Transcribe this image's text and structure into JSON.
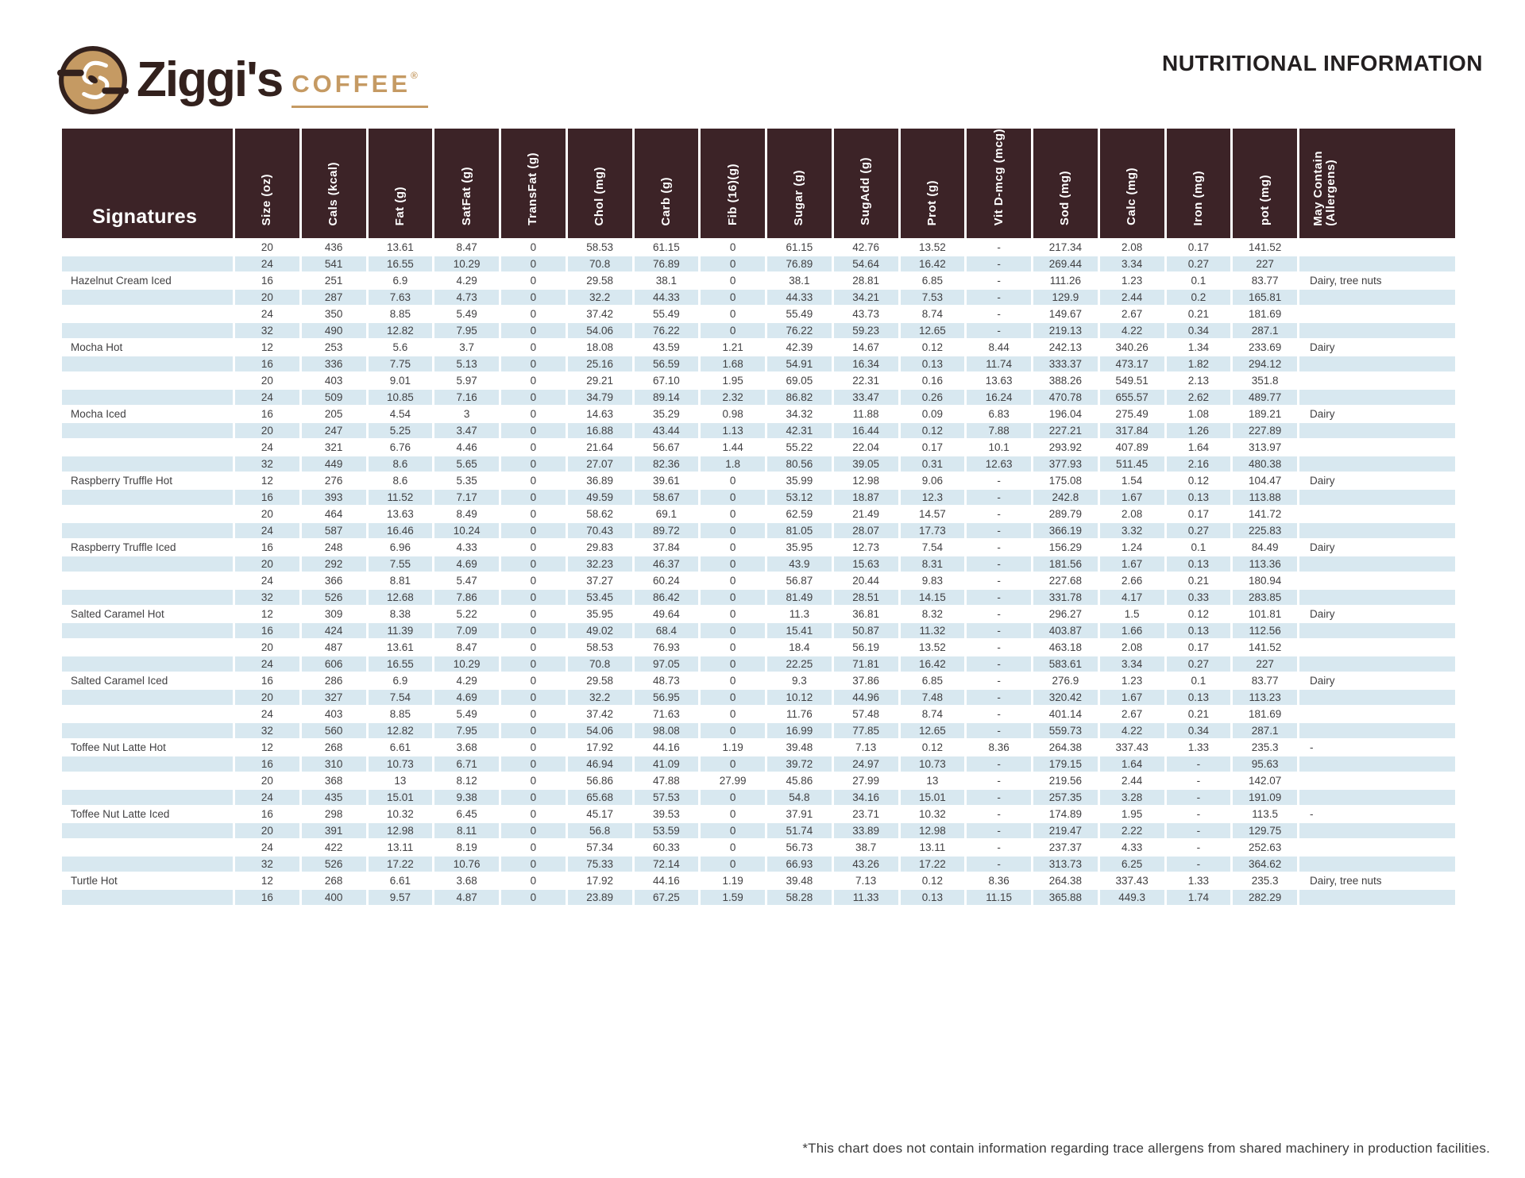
{
  "page": {
    "title": "NUTRITIONAL INFORMATION",
    "footnote": "*This chart does not contain information regarding trace allergens from shared machinery in production facilities."
  },
  "brand": {
    "name": "Ziggi's",
    "descriptor": "COFFEE",
    "registered": "®",
    "logo_icon": "ziggis-zipper-swirl-badge"
  },
  "colors": {
    "header_bg": "#3C2327",
    "stripe_blue": "#D8E8F0",
    "brand_tan": "#C59A63",
    "brand_dark": "#33211D",
    "body_text": "#414042"
  },
  "table": {
    "group_header": "Signatures",
    "columns": [
      "Size (oz)",
      "Cals (kcal)",
      "Fat (g)",
      "SatFat (g)",
      "TransFat (g)",
      "Chol (mg)",
      "Carb (g)",
      "Fib (16)(g)",
      "Sugar (g)",
      "SugAdd (g)",
      "Prot (g)",
      "Vit D-mcg (mcg)",
      "Sod (mg)",
      "Calc (mg)",
      "Iron (mg)",
      "pot (mg)"
    ],
    "allergen_column": "May Contain\n(Allergens)",
    "rows": [
      {
        "label": "",
        "values": [
          "20",
          "436",
          "13.61",
          "8.47",
          "0",
          "58.53",
          "61.15",
          "0",
          "61.15",
          "42.76",
          "13.52",
          "-",
          "217.34",
          "2.08",
          "0.17",
          "141.52"
        ],
        "allergen": ""
      },
      {
        "label": "",
        "values": [
          "24",
          "541",
          "16.55",
          "10.29",
          "0",
          "70.8",
          "76.89",
          "0",
          "76.89",
          "54.64",
          "16.42",
          "-",
          "269.44",
          "3.34",
          "0.27",
          "227"
        ],
        "allergen": ""
      },
      {
        "label": "Hazelnut Cream Iced",
        "values": [
          "16",
          "251",
          "6.9",
          "4.29",
          "0",
          "29.58",
          "38.1",
          "0",
          "38.1",
          "28.81",
          "6.85",
          "-",
          "111.26",
          "1.23",
          "0.1",
          "83.77"
        ],
        "allergen": "Dairy, tree nuts"
      },
      {
        "label": "",
        "values": [
          "20",
          "287",
          "7.63",
          "4.73",
          "0",
          "32.2",
          "44.33",
          "0",
          "44.33",
          "34.21",
          "7.53",
          "-",
          "129.9",
          "2.44",
          "0.2",
          "165.81"
        ],
        "allergen": ""
      },
      {
        "label": "",
        "values": [
          "24",
          "350",
          "8.85",
          "5.49",
          "0",
          "37.42",
          "55.49",
          "0",
          "55.49",
          "43.73",
          "8.74",
          "-",
          "149.67",
          "2.67",
          "0.21",
          "181.69"
        ],
        "allergen": ""
      },
      {
        "label": "",
        "values": [
          "32",
          "490",
          "12.82",
          "7.95",
          "0",
          "54.06",
          "76.22",
          "0",
          "76.22",
          "59.23",
          "12.65",
          "-",
          "219.13",
          "4.22",
          "0.34",
          "287.1"
        ],
        "allergen": ""
      },
      {
        "label": "Mocha Hot",
        "values": [
          "12",
          "253",
          "5.6",
          "3.7",
          "0",
          "18.08",
          "43.59",
          "1.21",
          "42.39",
          "14.67",
          "0.12",
          "8.44",
          "242.13",
          "340.26",
          "1.34",
          "233.69"
        ],
        "allergen": "Dairy"
      },
      {
        "label": "",
        "values": [
          "16",
          "336",
          "7.75",
          "5.13",
          "0",
          "25.16",
          "56.59",
          "1.68",
          "54.91",
          "16.34",
          "0.13",
          "11.74",
          "333.37",
          "473.17",
          "1.82",
          "294.12"
        ],
        "allergen": ""
      },
      {
        "label": "",
        "values": [
          "20",
          "403",
          "9.01",
          "5.97",
          "0",
          "29.21",
          "67.10",
          "1.95",
          "69.05",
          "22.31",
          "0.16",
          "13.63",
          "388.26",
          "549.51",
          "2.13",
          "351.8"
        ],
        "allergen": ""
      },
      {
        "label": "",
        "values": [
          "24",
          "509",
          "10.85",
          "7.16",
          "0",
          "34.79",
          "89.14",
          "2.32",
          "86.82",
          "33.47",
          "0.26",
          "16.24",
          "470.78",
          "655.57",
          "2.62",
          "489.77"
        ],
        "allergen": ""
      },
      {
        "label": "Mocha Iced",
        "values": [
          "16",
          "205",
          "4.54",
          "3",
          "0",
          "14.63",
          "35.29",
          "0.98",
          "34.32",
          "11.88",
          "0.09",
          "6.83",
          "196.04",
          "275.49",
          "1.08",
          "189.21"
        ],
        "allergen": "Dairy"
      },
      {
        "label": "",
        "values": [
          "20",
          "247",
          "5.25",
          "3.47",
          "0",
          "16.88",
          "43.44",
          "1.13",
          "42.31",
          "16.44",
          "0.12",
          "7.88",
          "227.21",
          "317.84",
          "1.26",
          "227.89"
        ],
        "allergen": ""
      },
      {
        "label": "",
        "values": [
          "24",
          "321",
          "6.76",
          "4.46",
          "0",
          "21.64",
          "56.67",
          "1.44",
          "55.22",
          "22.04",
          "0.17",
          "10.1",
          "293.92",
          "407.89",
          "1.64",
          "313.97"
        ],
        "allergen": ""
      },
      {
        "label": "",
        "values": [
          "32",
          "449",
          "8.6",
          "5.65",
          "0",
          "27.07",
          "82.36",
          "1.8",
          "80.56",
          "39.05",
          "0.31",
          "12.63",
          "377.93",
          "511.45",
          "2.16",
          "480.38"
        ],
        "allergen": ""
      },
      {
        "label": "Raspberry Truffle Hot",
        "values": [
          "12",
          "276",
          "8.6",
          "5.35",
          "0",
          "36.89",
          "39.61",
          "0",
          "35.99",
          "12.98",
          "9.06",
          "-",
          "175.08",
          "1.54",
          "0.12",
          "104.47"
        ],
        "allergen": "Dairy"
      },
      {
        "label": "",
        "values": [
          "16",
          "393",
          "11.52",
          "7.17",
          "0",
          "49.59",
          "58.67",
          "0",
          "53.12",
          "18.87",
          "12.3",
          "-",
          "242.8",
          "1.67",
          "0.13",
          "113.88"
        ],
        "allergen": ""
      },
      {
        "label": "",
        "values": [
          "20",
          "464",
          "13.63",
          "8.49",
          "0",
          "58.62",
          "69.1",
          "0",
          "62.59",
          "21.49",
          "14.57",
          "-",
          "289.79",
          "2.08",
          "0.17",
          "141.72"
        ],
        "allergen": ""
      },
      {
        "label": "",
        "values": [
          "24",
          "587",
          "16.46",
          "10.24",
          "0",
          "70.43",
          "89.72",
          "0",
          "81.05",
          "28.07",
          "17.73",
          "-",
          "366.19",
          "3.32",
          "0.27",
          "225.83"
        ],
        "allergen": ""
      },
      {
        "label": "Raspberry Truffle Iced",
        "values": [
          "16",
          "248",
          "6.96",
          "4.33",
          "0",
          "29.83",
          "37.84",
          "0",
          "35.95",
          "12.73",
          "7.54",
          "-",
          "156.29",
          "1.24",
          "0.1",
          "84.49"
        ],
        "allergen": "Dairy"
      },
      {
        "label": "",
        "values": [
          "20",
          "292",
          "7.55",
          "4.69",
          "0",
          "32.23",
          "46.37",
          "0",
          "43.9",
          "15.63",
          "8.31",
          "-",
          "181.56",
          "1.67",
          "0.13",
          "113.36"
        ],
        "allergen": ""
      },
      {
        "label": "",
        "values": [
          "24",
          "366",
          "8.81",
          "5.47",
          "0",
          "37.27",
          "60.24",
          "0",
          "56.87",
          "20.44",
          "9.83",
          "-",
          "227.68",
          "2.66",
          "0.21",
          "180.94"
        ],
        "allergen": ""
      },
      {
        "label": "",
        "values": [
          "32",
          "526",
          "12.68",
          "7.86",
          "0",
          "53.45",
          "86.42",
          "0",
          "81.49",
          "28.51",
          "14.15",
          "-",
          "331.78",
          "4.17",
          "0.33",
          "283.85"
        ],
        "allergen": ""
      },
      {
        "label": "Salted Caramel Hot",
        "values": [
          "12",
          "309",
          "8.38",
          "5.22",
          "0",
          "35.95",
          "49.64",
          "0",
          "11.3",
          "36.81",
          "8.32",
          "-",
          "296.27",
          "1.5",
          "0.12",
          "101.81"
        ],
        "allergen": "Dairy"
      },
      {
        "label": "",
        "values": [
          "16",
          "424",
          "11.39",
          "7.09",
          "0",
          "49.02",
          "68.4",
          "0",
          "15.41",
          "50.87",
          "11.32",
          "-",
          "403.87",
          "1.66",
          "0.13",
          "112.56"
        ],
        "allergen": ""
      },
      {
        "label": "",
        "values": [
          "20",
          "487",
          "13.61",
          "8.47",
          "0",
          "58.53",
          "76.93",
          "0",
          "18.4",
          "56.19",
          "13.52",
          "-",
          "463.18",
          "2.08",
          "0.17",
          "141.52"
        ],
        "allergen": ""
      },
      {
        "label": "",
        "values": [
          "24",
          "606",
          "16.55",
          "10.29",
          "0",
          "70.8",
          "97.05",
          "0",
          "22.25",
          "71.81",
          "16.42",
          "-",
          "583.61",
          "3.34",
          "0.27",
          "227"
        ],
        "allergen": ""
      },
      {
        "label": "Salted Caramel Iced",
        "values": [
          "16",
          "286",
          "6.9",
          "4.29",
          "0",
          "29.58",
          "48.73",
          "0",
          "9.3",
          "37.86",
          "6.85",
          "-",
          "276.9",
          "1.23",
          "0.1",
          "83.77"
        ],
        "allergen": "Dairy"
      },
      {
        "label": "",
        "values": [
          "20",
          "327",
          "7.54",
          "4.69",
          "0",
          "32.2",
          "56.95",
          "0",
          "10.12",
          "44.96",
          "7.48",
          "-",
          "320.42",
          "1.67",
          "0.13",
          "113.23"
        ],
        "allergen": ""
      },
      {
        "label": "",
        "values": [
          "24",
          "403",
          "8.85",
          "5.49",
          "0",
          "37.42",
          "71.63",
          "0",
          "11.76",
          "57.48",
          "8.74",
          "-",
          "401.14",
          "2.67",
          "0.21",
          "181.69"
        ],
        "allergen": ""
      },
      {
        "label": "",
        "values": [
          "32",
          "560",
          "12.82",
          "7.95",
          "0",
          "54.06",
          "98.08",
          "0",
          "16.99",
          "77.85",
          "12.65",
          "-",
          "559.73",
          "4.22",
          "0.34",
          "287.1"
        ],
        "allergen": ""
      },
      {
        "label": "Toffee Nut Latte Hot",
        "values": [
          "12",
          "268",
          "6.61",
          "3.68",
          "0",
          "17.92",
          "44.16",
          "1.19",
          "39.48",
          "7.13",
          "0.12",
          "8.36",
          "264.38",
          "337.43",
          "1.33",
          "235.3"
        ],
        "allergen": "-"
      },
      {
        "label": "",
        "values": [
          "16",
          "310",
          "10.73",
          "6.71",
          "0",
          "46.94",
          "41.09",
          "0",
          "39.72",
          "24.97",
          "10.73",
          "-",
          "179.15",
          "1.64",
          "-",
          "95.63"
        ],
        "allergen": ""
      },
      {
        "label": "",
        "values": [
          "20",
          "368",
          "13",
          "8.12",
          "0",
          "56.86",
          "47.88",
          "27.99",
          "45.86",
          "27.99",
          "13",
          "-",
          "219.56",
          "2.44",
          "-",
          "142.07"
        ],
        "allergen": ""
      },
      {
        "label": "",
        "values": [
          "24",
          "435",
          "15.01",
          "9.38",
          "0",
          "65.68",
          "57.53",
          "0",
          "54.8",
          "34.16",
          "15.01",
          "-",
          "257.35",
          "3.28",
          "-",
          "191.09"
        ],
        "allergen": ""
      },
      {
        "label": "Toffee Nut Latte Iced",
        "values": [
          "16",
          "298",
          "10.32",
          "6.45",
          "0",
          "45.17",
          "39.53",
          "0",
          "37.91",
          "23.71",
          "10.32",
          "-",
          "174.89",
          "1.95",
          "-",
          "113.5"
        ],
        "allergen": "-"
      },
      {
        "label": "",
        "values": [
          "20",
          "391",
          "12.98",
          "8.11",
          "0",
          "56.8",
          "53.59",
          "0",
          "51.74",
          "33.89",
          "12.98",
          "-",
          "219.47",
          "2.22",
          "-",
          "129.75"
        ],
        "allergen": ""
      },
      {
        "label": "",
        "values": [
          "24",
          "422",
          "13.11",
          "8.19",
          "0",
          "57.34",
          "60.33",
          "0",
          "56.73",
          "38.7",
          "13.11",
          "-",
          "237.37",
          "4.33",
          "-",
          "252.63"
        ],
        "allergen": ""
      },
      {
        "label": "",
        "values": [
          "32",
          "526",
          "17.22",
          "10.76",
          "0",
          "75.33",
          "72.14",
          "0",
          "66.93",
          "43.26",
          "17.22",
          "-",
          "313.73",
          "6.25",
          "-",
          "364.62"
        ],
        "allergen": ""
      },
      {
        "label": "Turtle Hot",
        "values": [
          "12",
          "268",
          "6.61",
          "3.68",
          "0",
          "17.92",
          "44.16",
          "1.19",
          "39.48",
          "7.13",
          "0.12",
          "8.36",
          "264.38",
          "337.43",
          "1.33",
          "235.3"
        ],
        "allergen": "Dairy, tree nuts"
      },
      {
        "label": "",
        "values": [
          "16",
          "400",
          "9.57",
          "4.87",
          "0",
          "23.89",
          "67.25",
          "1.59",
          "58.28",
          "11.33",
          "0.13",
          "11.15",
          "365.88",
          "449.3",
          "1.74",
          "282.29"
        ],
        "allergen": ""
      }
    ]
  }
}
